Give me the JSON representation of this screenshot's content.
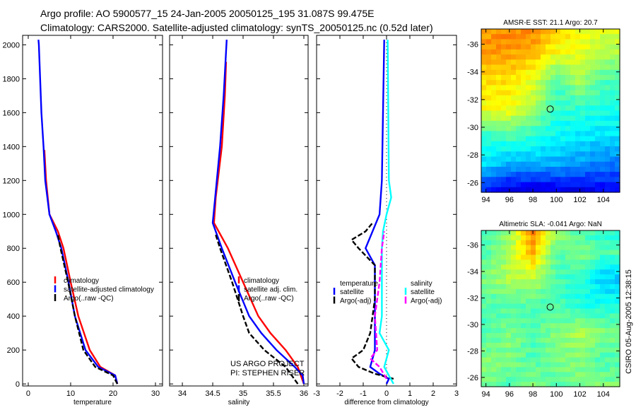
{
  "title_line1": "Argo profile: AO 5900577_15 24-Jan-2005 20050125_195 31.087S 99.475E",
  "title_line2": "Climatology: CARS2000. Satellite-adjusted climatology: synTS_20050125.nc (0.52d later)",
  "credit_line1": "US ARGO PROJECT",
  "credit_line2": "PI: STEPHEN RISER",
  "timestamp": "CSIRO 05-Aug-2005 12:38:15",
  "colors": {
    "climatology": "#ff0000",
    "satellite": "#0000ff",
    "argo": "#000000",
    "sal_satellite": "#00ffff",
    "sal_argo": "#ff00ff"
  },
  "chart_data": [
    {
      "type": "line",
      "id": "temperature",
      "xlabel": "temperature",
      "ylabel": "",
      "xlim": [
        -1.33,
        31.67
      ],
      "ylim": [
        2056,
        -12
      ],
      "xticks": [
        0,
        10,
        20,
        30
      ],
      "yticks": [
        0,
        200,
        400,
        600,
        800,
        1000,
        1200,
        1400,
        1600,
        1800,
        2000
      ],
      "legend": [
        "climatology",
        "satellite-adjusted climatology",
        "Argo(..raw -QC)"
      ],
      "legend_placement": "lower-right",
      "series": [
        {
          "name": "climatology",
          "color": "#ff0000",
          "dash": false,
          "points": [
            [
              21,
              0
            ],
            [
              20.5,
              50
            ],
            [
              17,
              100
            ],
            [
              14.5,
              200
            ],
            [
              11.8,
              400
            ],
            [
              10,
              600
            ],
            [
              8.3,
              800
            ],
            [
              7,
              900
            ],
            [
              5,
              1000
            ],
            [
              4.2,
              1200
            ],
            [
              3.8,
              1380
            ]
          ]
        },
        {
          "name": "satellite-adjusted climatology",
          "color": "#0000ff",
          "dash": false,
          "points": [
            [
              21,
              0
            ],
            [
              20.5,
              50
            ],
            [
              16.5,
              100
            ],
            [
              13.5,
              200
            ],
            [
              11,
              400
            ],
            [
              9.5,
              600
            ],
            [
              7.8,
              800
            ],
            [
              6.5,
              900
            ],
            [
              5,
              1000
            ],
            [
              4,
              1200
            ],
            [
              3.6,
              1400
            ],
            [
              3.1,
              1600
            ],
            [
              2.8,
              1800
            ],
            [
              2.5,
              2000
            ],
            [
              2.4,
              2030
            ]
          ]
        },
        {
          "name": "Argo(..raw -QC)",
          "color": "#000000",
          "dash": true,
          "points": [
            [
              21,
              0
            ],
            [
              20,
              50
            ],
            [
              15.8,
              100
            ],
            [
              13,
              200
            ],
            [
              11,
              400
            ],
            [
              9.4,
              600
            ],
            [
              7.6,
              800
            ],
            [
              7,
              880
            ]
          ]
        }
      ]
    },
    {
      "type": "line",
      "id": "salinity",
      "xlabel": "salinity",
      "ylabel": "",
      "xlim": [
        33.79,
        36.07
      ],
      "ylim": [
        2056,
        -12
      ],
      "xticks": [
        34,
        34.5,
        35,
        35.5,
        36
      ],
      "yticks": [
        0,
        200,
        400,
        600,
        800,
        1000,
        1200,
        1400,
        1600,
        1800,
        2000
      ],
      "legend": [
        "climatology",
        "satellite adj. clim.",
        "Argo(..raw -QC)"
      ],
      "legend_placement": "lower-right",
      "series": [
        {
          "name": "climatology",
          "color": "#ff0000",
          "dash": false,
          "points": [
            [
              36,
              0
            ],
            [
              35.95,
              50
            ],
            [
              35.9,
              100
            ],
            [
              35.7,
              200
            ],
            [
              35.45,
              300
            ],
            [
              35.25,
              400
            ],
            [
              35.0,
              600
            ],
            [
              34.75,
              800
            ],
            [
              34.52,
              950
            ],
            [
              34.55,
              1100
            ],
            [
              34.65,
              1400
            ],
            [
              34.7,
              1700
            ],
            [
              34.72,
              1900
            ]
          ]
        },
        {
          "name": "satellite adj. clim.",
          "color": "#0000ff",
          "dash": false,
          "points": [
            [
              36,
              0
            ],
            [
              35.98,
              50
            ],
            [
              35.85,
              100
            ],
            [
              35.55,
              200
            ],
            [
              35.3,
              300
            ],
            [
              35.1,
              400
            ],
            [
              34.87,
              600
            ],
            [
              34.65,
              800
            ],
            [
              34.5,
              950
            ],
            [
              34.54,
              1100
            ],
            [
              34.62,
              1400
            ],
            [
              34.68,
              1700
            ],
            [
              34.73,
              2030
            ]
          ]
        },
        {
          "name": "Argo(..raw -QC)",
          "color": "#000000",
          "dash": true,
          "points": [
            [
              35.9,
              0
            ],
            [
              35.7,
              100
            ],
            [
              35.35,
              200
            ],
            [
              35.1,
              300
            ],
            [
              35.0,
              400
            ],
            [
              34.82,
              600
            ],
            [
              34.62,
              800
            ],
            [
              34.55,
              880
            ]
          ]
        }
      ]
    },
    {
      "type": "line",
      "id": "difference",
      "xlabel": "difference from climatology",
      "ylabel": "",
      "xlim": [
        -3,
        3
      ],
      "ylim": [
        2056,
        -12
      ],
      "xticks": [
        -3,
        -2,
        -1,
        0,
        1,
        2,
        3
      ],
      "yticks": [
        0,
        200,
        400,
        600,
        800,
        1000,
        1200,
        1400,
        1600,
        1800,
        2000
      ],
      "legend_groups": [
        {
          "heading": "temperature",
          "items": [
            "satellite",
            "Argo(-adj)"
          ]
        },
        {
          "heading": "salinity",
          "items": [
            "satellite",
            "Argo(-adj)"
          ]
        }
      ],
      "series": [
        {
          "name": "temperature satellite",
          "color": "#0000ff",
          "dash": false,
          "points": [
            [
              0,
              0
            ],
            [
              0.1,
              30
            ],
            [
              -0.3,
              60
            ],
            [
              -0.7,
              100
            ],
            [
              -0.5,
              200
            ],
            [
              -0.5,
              400
            ],
            [
              -0.5,
              600
            ],
            [
              -0.5,
              700
            ],
            [
              -0.9,
              800
            ],
            [
              -0.6,
              900
            ],
            [
              -0.3,
              1000
            ],
            [
              -0.2,
              1200
            ],
            [
              -0.15,
              1600
            ],
            [
              -0.1,
              2030
            ]
          ]
        },
        {
          "name": "temperature Argo(-adj)",
          "color": "#000000",
          "dash": true,
          "points": [
            [
              0.3,
              30
            ],
            [
              -0.5,
              60
            ],
            [
              -1.2,
              100
            ],
            [
              -1.5,
              150
            ],
            [
              -1,
              200
            ],
            [
              -0.7,
              300
            ],
            [
              -0.5,
              500
            ],
            [
              -0.5,
              700
            ],
            [
              -1.2,
              800
            ],
            [
              -1.5,
              850
            ],
            [
              -0.9,
              900
            ],
            [
              -0.6,
              950
            ]
          ]
        },
        {
          "name": "salinity satellite",
          "color": "#00ffff",
          "dash": false,
          "points": [
            [
              0.3,
              0
            ],
            [
              -0.1,
              100
            ],
            [
              0.1,
              200
            ],
            [
              -0.3,
              300
            ],
            [
              -0.2,
              400
            ],
            [
              -0.2,
              600
            ],
            [
              -0.2,
              800
            ],
            [
              -0.15,
              900
            ],
            [
              0,
              1000
            ],
            [
              0.2,
              1100
            ],
            [
              0.1,
              1200
            ],
            [
              0.05,
              2030
            ]
          ]
        },
        {
          "name": "salinity Argo(-adj)",
          "color": "#ff00ff",
          "dash": true,
          "points": [
            [
              0,
              30
            ],
            [
              -0.3,
              100
            ],
            [
              -0.7,
              150
            ],
            [
              -0.4,
              200
            ],
            [
              -0.5,
              400
            ],
            [
              -0.3,
              600
            ],
            [
              -0.2,
              800
            ],
            [
              -0.1,
              900
            ]
          ]
        }
      ]
    },
    {
      "type": "heatmap",
      "id": "sst_map",
      "title": "AMSR-E SST: 21.1 Argo: 20.7",
      "xlim": [
        93.6,
        105.4
      ],
      "ylim": [
        -37.1,
        -25.3
      ],
      "xticks": [
        94,
        96,
        98,
        100,
        102,
        104
      ],
      "yticks": [
        -26,
        -28,
        -30,
        -32,
        -34,
        -36
      ],
      "marker": {
        "lon": 99.475,
        "lat": -31.087
      },
      "grid_lats": [
        -25,
        -27,
        -29,
        -31,
        -33,
        -35,
        -37
      ],
      "grid_lons": [
        94,
        96,
        98,
        100,
        102,
        104
      ],
      "levels": [
        [
          0.72,
          0.75,
          0.75,
          0.68,
          0.62,
          0.6
        ],
        [
          0.73,
          0.72,
          0.7,
          0.62,
          0.6,
          0.55
        ],
        [
          0.65,
          0.65,
          0.6,
          0.45,
          0.55,
          0.45
        ],
        [
          0.62,
          0.62,
          0.55,
          0.42,
          0.42,
          0.4
        ],
        [
          0.42,
          0.45,
          0.42,
          0.38,
          0.36,
          0.35
        ],
        [
          0.35,
          0.3,
          0.3,
          0.3,
          0.28,
          0.25
        ],
        [
          0.15,
          0.1,
          0.08,
          0.1,
          0.1,
          0.12
        ]
      ]
    },
    {
      "type": "heatmap",
      "id": "sla_map",
      "title": "Altimetric SLA: -0.041 Argo: NaN",
      "xlim": [
        93.6,
        105.4
      ],
      "ylim": [
        -37.1,
        -25.3
      ],
      "xticks": [
        94,
        96,
        98,
        100,
        102,
        104
      ],
      "yticks": [
        -26,
        -28,
        -30,
        -32,
        -34,
        -36
      ],
      "marker": {
        "lon": 99.475,
        "lat": -31.087
      },
      "grid_lats": [
        -25,
        -27,
        -29,
        -31,
        -33,
        -35,
        -37
      ],
      "grid_lons": [
        94,
        96,
        98,
        100,
        102,
        104
      ],
      "levels": [
        [
          0.45,
          0.5,
          0.75,
          0.55,
          0.45,
          0.4
        ],
        [
          0.45,
          0.55,
          0.7,
          0.45,
          0.5,
          0.45
        ],
        [
          0.5,
          0.55,
          0.55,
          0.45,
          0.42,
          0.32
        ],
        [
          0.45,
          0.45,
          0.45,
          0.45,
          0.4,
          0.4
        ],
        [
          0.45,
          0.5,
          0.45,
          0.5,
          0.55,
          0.5
        ],
        [
          0.5,
          0.5,
          0.45,
          0.5,
          0.5,
          0.45
        ],
        [
          0.5,
          0.45,
          0.5,
          0.45,
          0.5,
          0.5
        ]
      ]
    }
  ]
}
